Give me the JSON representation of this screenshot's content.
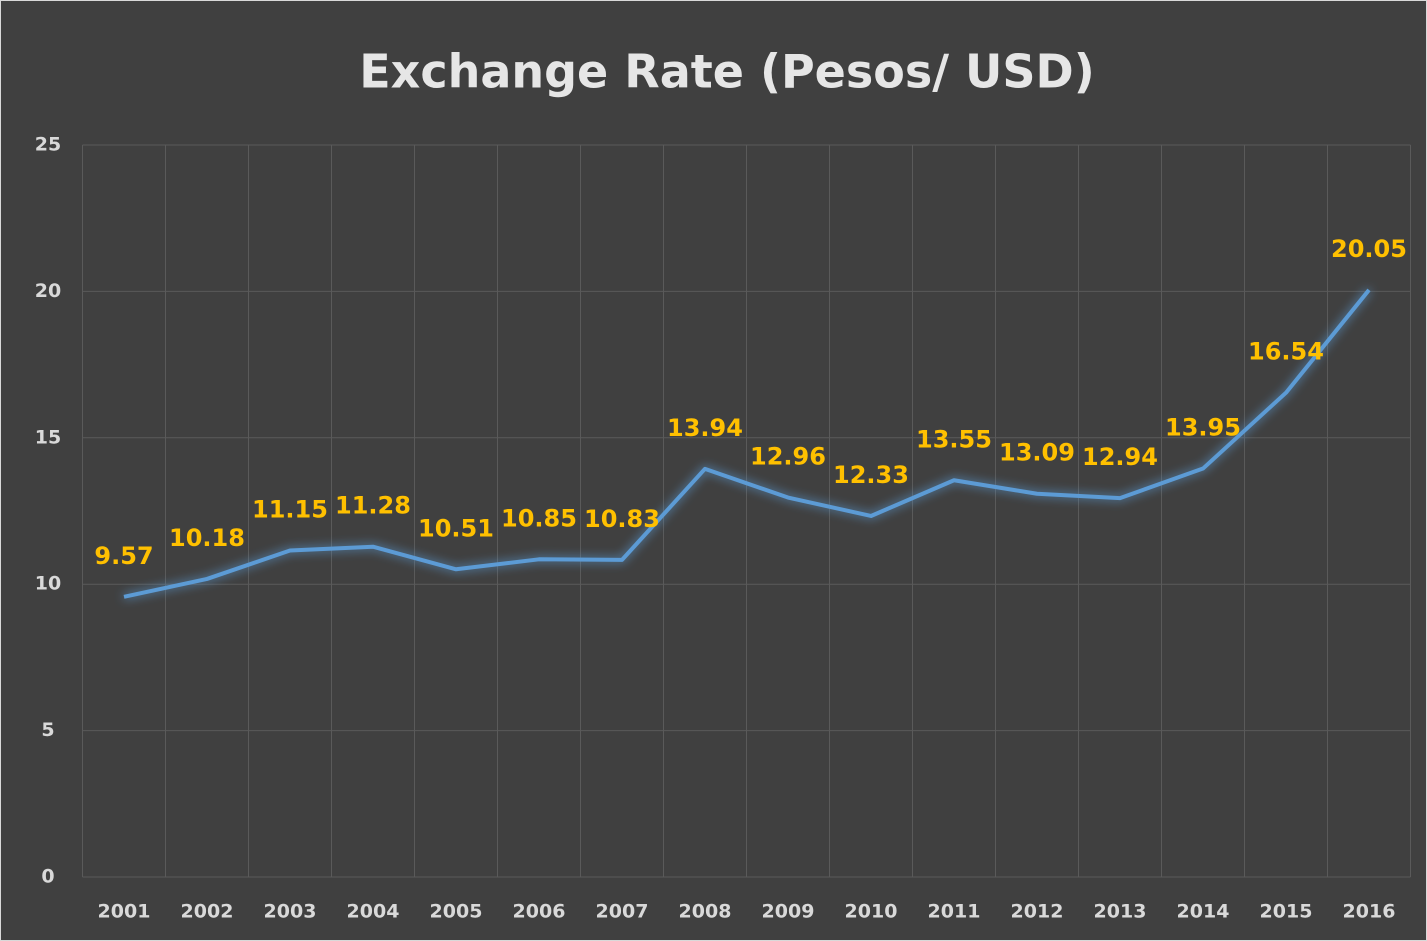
{
  "chart_data": {
    "type": "line",
    "title": "Exchange Rate (Pesos/ USD)",
    "categories": [
      "2001",
      "2002",
      "2003",
      "2004",
      "2005",
      "2006",
      "2007",
      "2008",
      "2009",
      "2010",
      "2011",
      "2012",
      "2013",
      "2014",
      "2015",
      "2016"
    ],
    "values": [
      9.57,
      10.18,
      11.15,
      11.28,
      10.51,
      10.85,
      10.83,
      13.94,
      12.96,
      12.33,
      13.55,
      13.09,
      12.94,
      13.95,
      16.54,
      20.05
    ],
    "color": "#5b9bd5",
    "label_color": "#ffc000",
    "ylim": [
      0,
      25
    ],
    "yticks": [
      0,
      5,
      10,
      15,
      20,
      25
    ],
    "grid": true
  }
}
